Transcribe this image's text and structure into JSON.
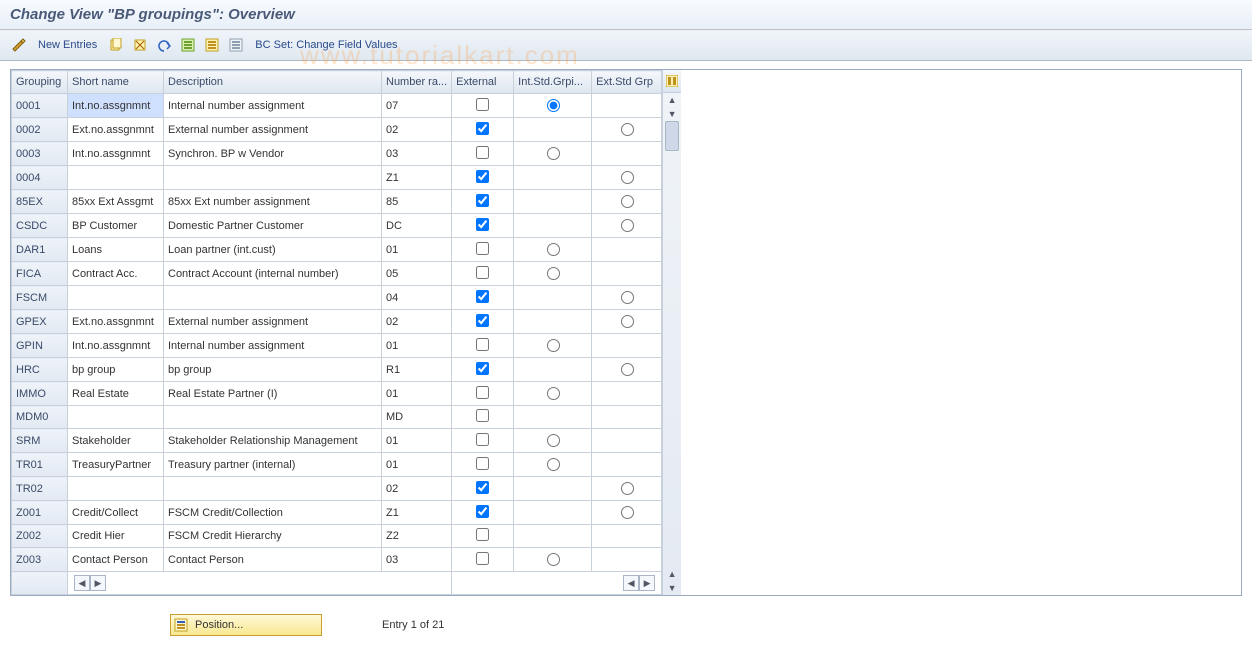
{
  "title": "Change View \"BP groupings\": Overview",
  "toolbar": {
    "new_entries_label": "New Entries",
    "bc_set_label": "BC Set: Change Field Values"
  },
  "watermark": "www.tutorialkart.com",
  "columns": {
    "grouping": "Grouping",
    "short_name": "Short name",
    "description": "Description",
    "number_range": "Number ra...",
    "external": "External",
    "int_std_grp": "Int.Std.Grpi...",
    "ext_std_grp": "Ext.Std Grp"
  },
  "column_widths": {
    "grouping": 56,
    "short_name": 96,
    "description": 218,
    "number_range": 70,
    "external": 62,
    "int_std_grp": 78,
    "ext_std_grp": 70
  },
  "rows": [
    {
      "grouping": "0001",
      "short": "Int.no.assgnmnt",
      "desc": "Internal number assignment",
      "nr": "07",
      "ext": false,
      "int_radio": "selected",
      "ext_radio": null,
      "sel": true
    },
    {
      "grouping": "0002",
      "short": "Ext.no.assgnmnt",
      "desc": "External number assignment",
      "nr": "02",
      "ext": true,
      "int_radio": null,
      "ext_radio": "empty"
    },
    {
      "grouping": "0003",
      "short": "Int.no.assgnmnt",
      "desc": "Synchron. BP w Vendor",
      "nr": "03",
      "ext": false,
      "int_radio": "empty",
      "ext_radio": null
    },
    {
      "grouping": "0004",
      "short": "",
      "desc": "",
      "nr": "Z1",
      "ext": true,
      "int_radio": null,
      "ext_radio": "empty"
    },
    {
      "grouping": "85EX",
      "short": "85xx Ext Assgmt",
      "desc": "85xx Ext number assignment",
      "nr": "85",
      "ext": true,
      "int_radio": null,
      "ext_radio": "empty"
    },
    {
      "grouping": "CSDC",
      "short": "BP Customer",
      "desc": "Domestic Partner Customer",
      "nr": "DC",
      "ext": true,
      "int_radio": null,
      "ext_radio": "empty"
    },
    {
      "grouping": "DAR1",
      "short": "Loans",
      "desc": "Loan partner (int.cust)",
      "nr": "01",
      "ext": false,
      "int_radio": "empty",
      "ext_radio": null
    },
    {
      "grouping": "FICA",
      "short": "Contract Acc.",
      "desc": "Contract Account (internal number)",
      "nr": "05",
      "ext": false,
      "int_radio": "empty",
      "ext_radio": null
    },
    {
      "grouping": "FSCM",
      "short": "",
      "desc": "",
      "nr": "04",
      "ext": true,
      "int_radio": null,
      "ext_radio": "empty"
    },
    {
      "grouping": "GPEX",
      "short": "Ext.no.assgnmnt",
      "desc": "External number assignment",
      "nr": "02",
      "ext": true,
      "int_radio": null,
      "ext_radio": "empty"
    },
    {
      "grouping": "GPIN",
      "short": "Int.no.assgnmnt",
      "desc": "Internal number assignment",
      "nr": "01",
      "ext": false,
      "int_radio": "empty",
      "ext_radio": null
    },
    {
      "grouping": "HRC",
      "short": "bp group",
      "desc": "bp group",
      "nr": "R1",
      "ext": true,
      "int_radio": null,
      "ext_radio": "empty"
    },
    {
      "grouping": "IMMO",
      "short": "Real Estate",
      "desc": "Real Estate Partner (I)",
      "nr": "01",
      "ext": false,
      "int_radio": "empty",
      "ext_radio": null
    },
    {
      "grouping": "MDM0",
      "short": "",
      "desc": "",
      "nr": "MD",
      "ext": false,
      "int_radio": null,
      "ext_radio": null
    },
    {
      "grouping": "SRM",
      "short": "Stakeholder",
      "desc": "Stakeholder Relationship Management",
      "nr": "01",
      "ext": false,
      "int_radio": "empty",
      "ext_radio": null
    },
    {
      "grouping": "TR01",
      "short": "TreasuryPartner",
      "desc": "Treasury partner (internal)",
      "nr": "01",
      "ext": false,
      "int_radio": "empty",
      "ext_radio": null
    },
    {
      "grouping": "TR02",
      "short": "",
      "desc": "",
      "nr": "02",
      "ext": true,
      "int_radio": null,
      "ext_radio": "empty"
    },
    {
      "grouping": "Z001",
      "short": "Credit/Collect",
      "desc": "FSCM Credit/Collection",
      "nr": "Z1",
      "ext": true,
      "int_radio": null,
      "ext_radio": "empty"
    },
    {
      "grouping": "Z002",
      "short": "Credit Hier",
      "desc": "FSCM Credit Hierarchy",
      "nr": "Z2",
      "ext": false,
      "int_radio": null,
      "ext_radio": null
    },
    {
      "grouping": "Z003",
      "short": "Contact Person",
      "desc": "Contact Person",
      "nr": "03",
      "ext": false,
      "int_radio": "empty",
      "ext_radio": null
    }
  ],
  "footer": {
    "position_label": "Position...",
    "entry_text": "Entry 1 of 21"
  },
  "colors": {
    "header_grad_top": "#f4f7fb",
    "header_grad_bottom": "#dde6f0",
    "border": "#c8d0dc",
    "selected_cell": "#cfe0ff"
  }
}
